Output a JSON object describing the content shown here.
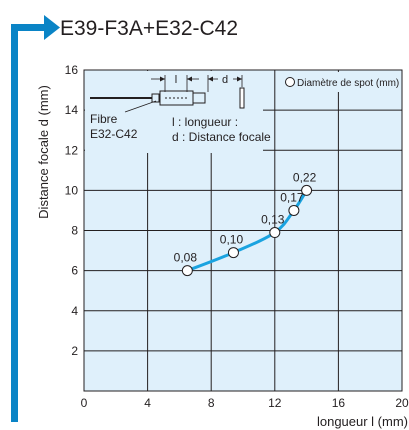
{
  "header": {
    "title": "E39-F3A+E32-C42"
  },
  "colors": {
    "accent": "#0a84c6",
    "plot_background": "#dff0fb",
    "line": "#1aa3e0",
    "grid": "#231f20"
  },
  "inset": {
    "l_symbol": "l",
    "d_symbol": "d",
    "fiber_label_1": "Fibre",
    "fiber_label_2": "E32-C42",
    "legend_l": "l : longueur :",
    "legend_d": "d : Distance focale"
  },
  "chart_data": {
    "type": "line",
    "title": "E39-F3A+E32-C42",
    "xlabel": "longueur l (mm)",
    "ylabel": "Distance focale d (mm)",
    "xlim": [
      0,
      20
    ],
    "ylim": [
      0,
      16
    ],
    "xticks": [
      0,
      4,
      8,
      12,
      16,
      20
    ],
    "yticks": [
      2,
      4,
      6,
      8,
      10,
      12,
      14,
      16
    ],
    "grid": true,
    "legend": {
      "text": "Diamètre de spot (mm)",
      "position": "top-right",
      "marker": "open-circle"
    },
    "series": [
      {
        "x": [
          6.5,
          9.4,
          12.0,
          13.2,
          14.0
        ],
        "y": [
          6.0,
          6.9,
          7.9,
          9.0,
          10.0
        ],
        "labels": [
          "0,08",
          "0,10",
          "0,13",
          "0,17",
          "0,22"
        ]
      }
    ]
  }
}
